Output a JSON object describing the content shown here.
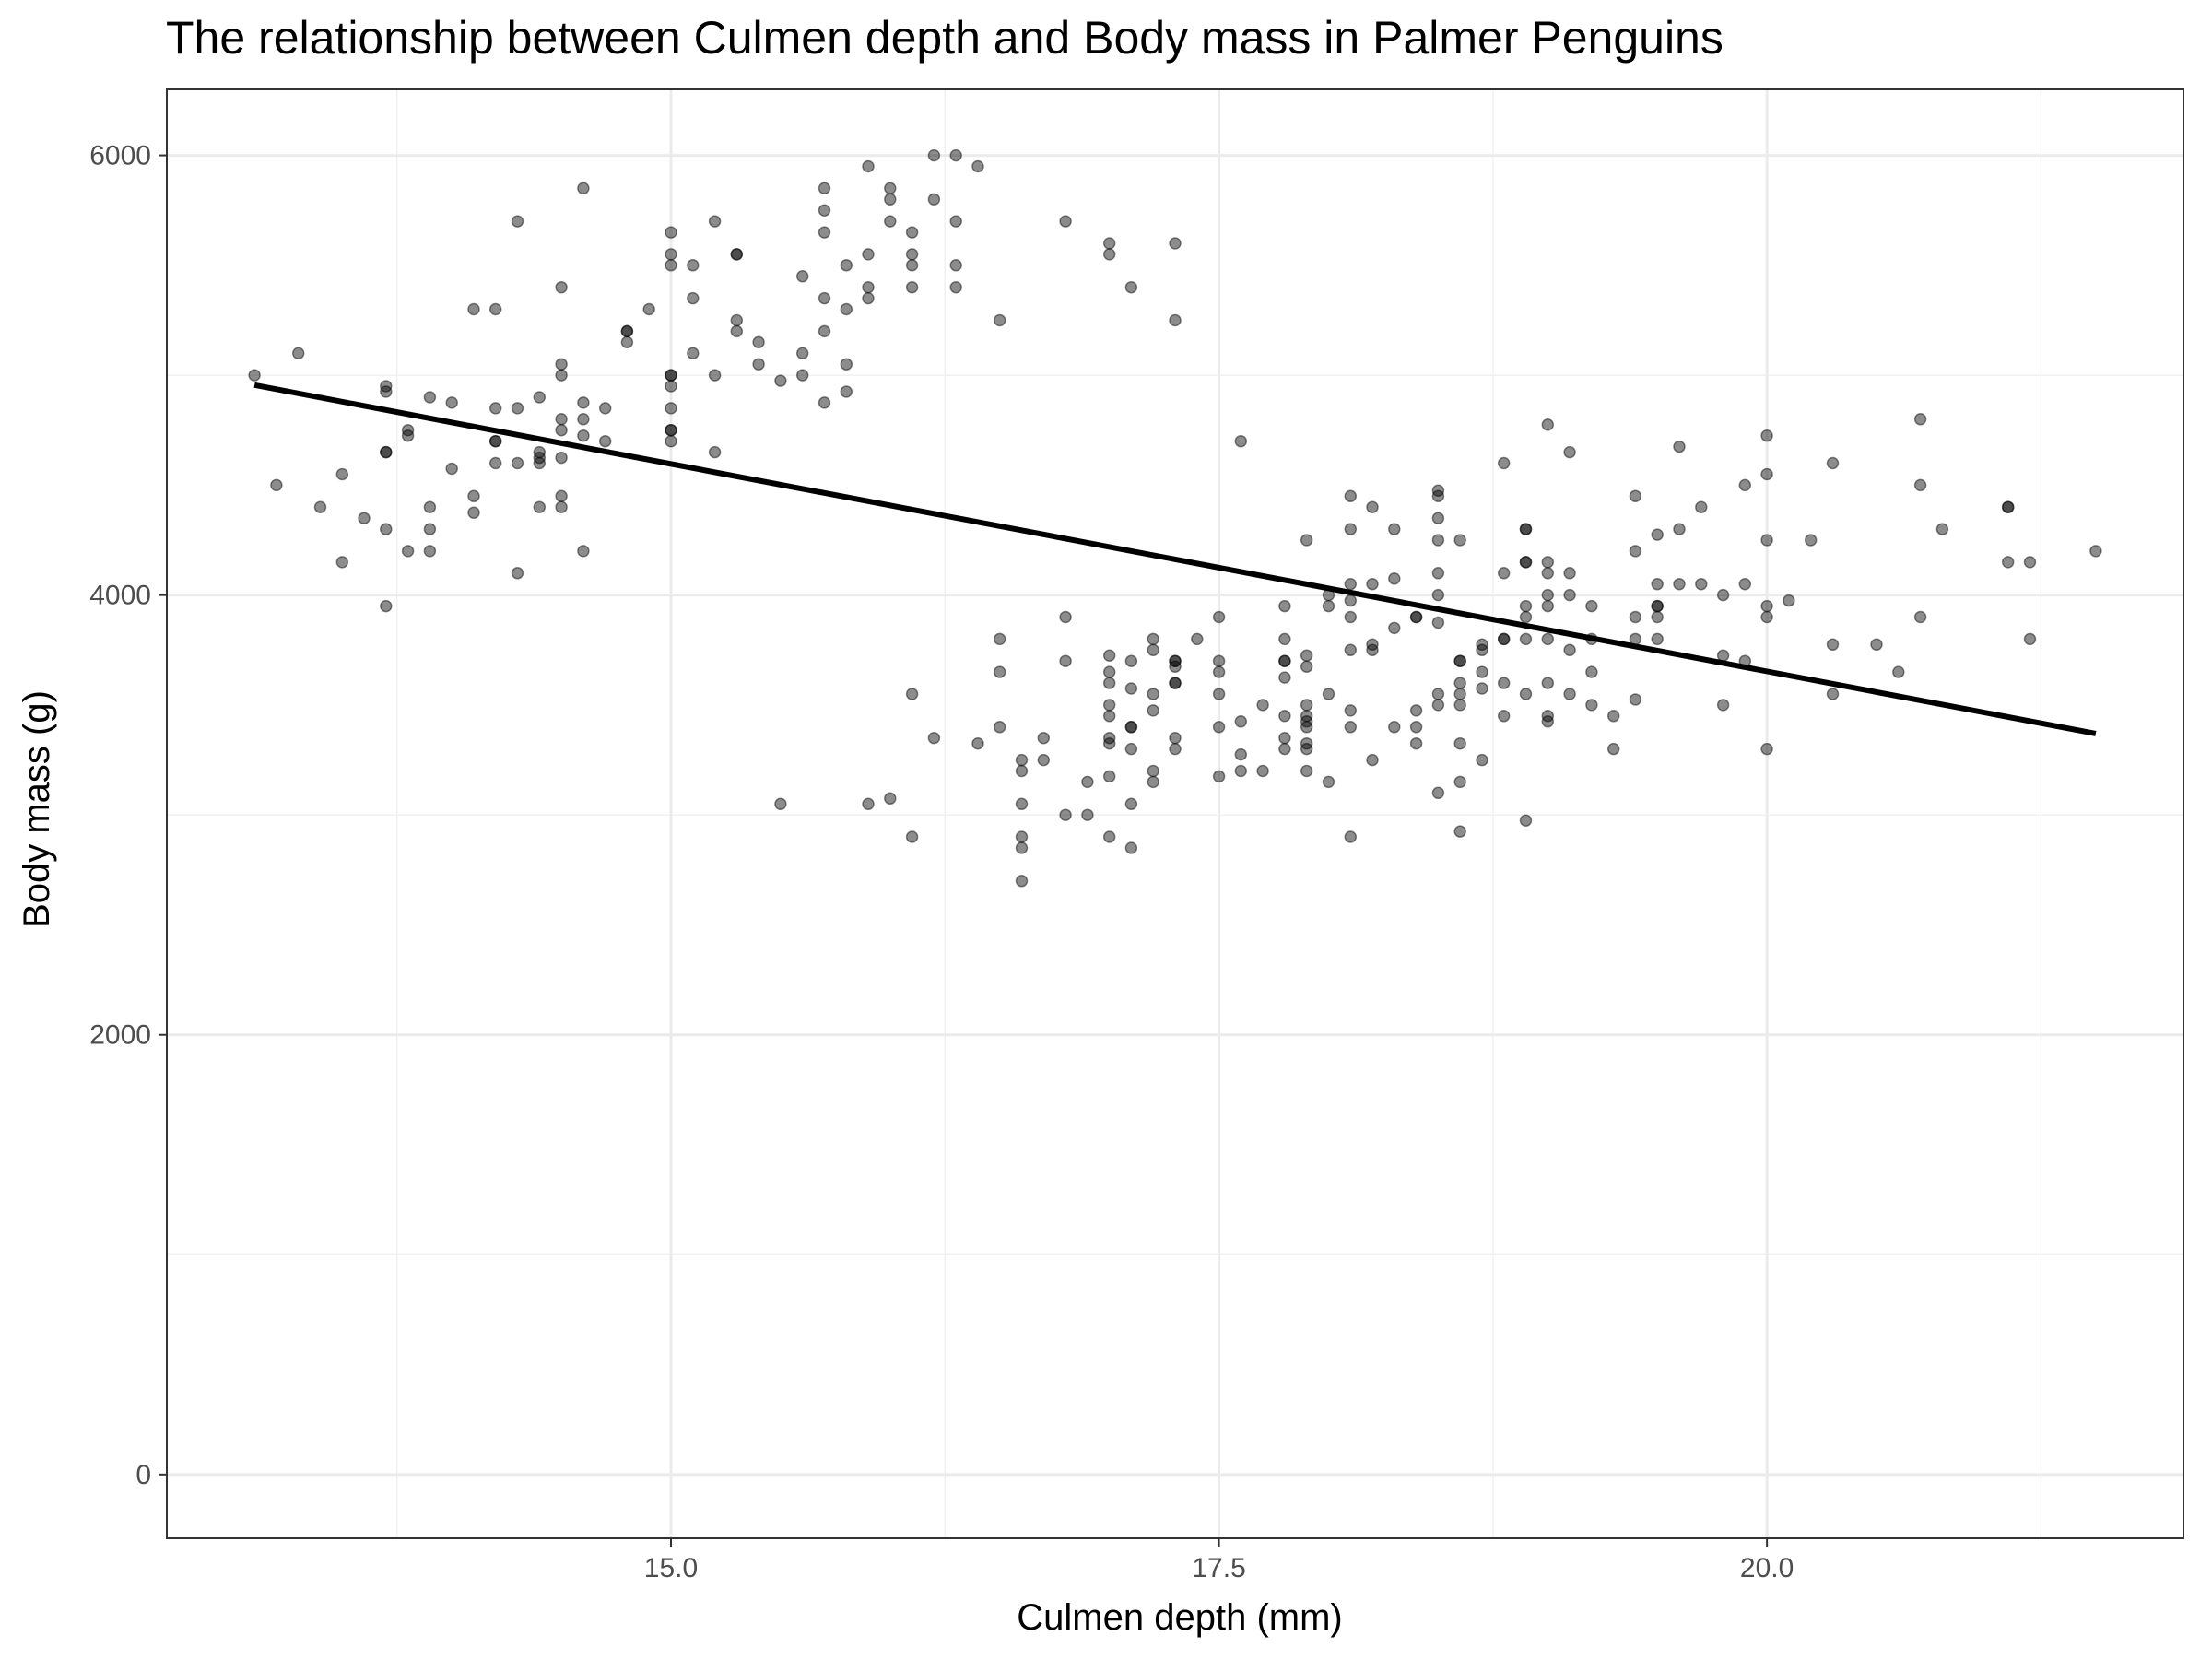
{
  "chart_data": {
    "type": "scatter",
    "title": "The relationship between Culmen depth and Body mass in Palmer Penguins",
    "xlabel": "Culmen depth (mm)",
    "ylabel": "Body mass (g)",
    "xlim": [
      12.7,
      21.9
    ],
    "ylim": [
      -290,
      6300
    ],
    "x_ticks": [
      15.0,
      17.5,
      20.0
    ],
    "x_tick_labels": [
      "15.0",
      "17.5",
      "20.0"
    ],
    "y_ticks": [
      0,
      2000,
      4000,
      6000
    ],
    "y_tick_labels": [
      "0",
      "2000",
      "4000",
      "6000"
    ],
    "grid": true,
    "legend": "none",
    "point_color": "#000000",
    "point_opacity": 0.45,
    "line_color": "#000000",
    "regression_line": {
      "x": [
        13.1,
        21.5
      ],
      "y": [
        4955,
        3370
      ]
    },
    "points": [
      [
        13.1,
        5000
      ],
      [
        13.2,
        4500
      ],
      [
        13.3,
        5100
      ],
      [
        13.4,
        4400
      ],
      [
        13.5,
        4550
      ],
      [
        13.5,
        4150
      ],
      [
        13.6,
        4350
      ],
      [
        13.7,
        4300
      ],
      [
        13.7,
        4650
      ],
      [
        13.7,
        4650
      ],
      [
        13.7,
        4950
      ],
      [
        13.7,
        4925
      ],
      [
        13.7,
        3950
      ],
      [
        13.8,
        4750
      ],
      [
        13.8,
        4725
      ],
      [
        13.8,
        4200
      ],
      [
        13.9,
        4900
      ],
      [
        13.9,
        4400
      ],
      [
        13.9,
        4300
      ],
      [
        13.9,
        4200
      ],
      [
        14.0,
        4875
      ],
      [
        14.0,
        4575
      ],
      [
        14.1,
        5300
      ],
      [
        14.1,
        4450
      ],
      [
        14.1,
        4375
      ],
      [
        14.2,
        5300
      ],
      [
        14.2,
        4850
      ],
      [
        14.2,
        4700
      ],
      [
        14.2,
        4700
      ],
      [
        14.2,
        4600
      ],
      [
        14.3,
        5700
      ],
      [
        14.3,
        4850
      ],
      [
        14.3,
        4600
      ],
      [
        14.3,
        4100
      ],
      [
        14.4,
        4900
      ],
      [
        14.4,
        4650
      ],
      [
        14.4,
        4625
      ],
      [
        14.4,
        4600
      ],
      [
        14.4,
        4400
      ],
      [
        14.5,
        5400
      ],
      [
        14.5,
        5050
      ],
      [
        14.5,
        5000
      ],
      [
        14.5,
        4800
      ],
      [
        14.5,
        4750
      ],
      [
        14.5,
        4625
      ],
      [
        14.5,
        4450
      ],
      [
        14.5,
        4400
      ],
      [
        14.6,
        5850
      ],
      [
        14.6,
        4875
      ],
      [
        14.6,
        4800
      ],
      [
        14.6,
        4725
      ],
      [
        14.6,
        4200
      ],
      [
        14.7,
        4850
      ],
      [
        14.7,
        4700
      ],
      [
        14.8,
        5200
      ],
      [
        14.8,
        5200
      ],
      [
        14.8,
        5150
      ],
      [
        14.9,
        5300
      ],
      [
        15.0,
        5650
      ],
      [
        15.0,
        5550
      ],
      [
        15.0,
        5500
      ],
      [
        15.0,
        5000
      ],
      [
        15.0,
        5000
      ],
      [
        15.0,
        4950
      ],
      [
        15.0,
        4850
      ],
      [
        15.0,
        4750
      ],
      [
        15.0,
        4750
      ],
      [
        15.0,
        4700
      ],
      [
        15.1,
        5500
      ],
      [
        15.1,
        5350
      ],
      [
        15.1,
        5100
      ],
      [
        15.2,
        5700
      ],
      [
        15.2,
        5000
      ],
      [
        15.2,
        4650
      ],
      [
        15.3,
        5550
      ],
      [
        15.3,
        5550
      ],
      [
        15.3,
        5250
      ],
      [
        15.3,
        5200
      ],
      [
        15.4,
        5150
      ],
      [
        15.4,
        5050
      ],
      [
        15.5,
        4975
      ],
      [
        15.5,
        3050
      ],
      [
        15.6,
        5450
      ],
      [
        15.6,
        5100
      ],
      [
        15.6,
        5000
      ],
      [
        15.7,
        5850
      ],
      [
        15.7,
        5750
      ],
      [
        15.7,
        5650
      ],
      [
        15.7,
        5350
      ],
      [
        15.7,
        5200
      ],
      [
        15.7,
        4875
      ],
      [
        15.8,
        5500
      ],
      [
        15.8,
        5300
      ],
      [
        15.8,
        5050
      ],
      [
        15.8,
        4925
      ],
      [
        15.9,
        5950
      ],
      [
        15.9,
        5550
      ],
      [
        15.9,
        5400
      ],
      [
        15.9,
        5350
      ],
      [
        15.9,
        3050
      ],
      [
        16.0,
        5850
      ],
      [
        16.0,
        5800
      ],
      [
        16.0,
        5700
      ],
      [
        16.0,
        3075
      ],
      [
        16.1,
        5650
      ],
      [
        16.1,
        5550
      ],
      [
        16.1,
        5500
      ],
      [
        16.1,
        5400
      ],
      [
        16.1,
        3550
      ],
      [
        16.1,
        2900
      ],
      [
        16.2,
        6000
      ],
      [
        16.2,
        5800
      ],
      [
        16.2,
        3350
      ],
      [
        16.3,
        6000
      ],
      [
        16.3,
        5700
      ],
      [
        16.3,
        5500
      ],
      [
        16.3,
        5400
      ],
      [
        16.4,
        5950
      ],
      [
        16.4,
        3325
      ],
      [
        16.5,
        5250
      ],
      [
        16.5,
        3800
      ],
      [
        16.5,
        3650
      ],
      [
        16.5,
        3400
      ],
      [
        16.6,
        3250
      ],
      [
        16.6,
        3200
      ],
      [
        16.6,
        3050
      ],
      [
        16.6,
        2900
      ],
      [
        16.6,
        2850
      ],
      [
        16.6,
        2700
      ],
      [
        16.7,
        3350
      ],
      [
        16.7,
        3250
      ],
      [
        16.8,
        5700
      ],
      [
        16.8,
        3900
      ],
      [
        16.8,
        3700
      ],
      [
        16.8,
        3000
      ],
      [
        16.9,
        3150
      ],
      [
        16.9,
        3000
      ],
      [
        17.0,
        5600
      ],
      [
        17.0,
        5550
      ],
      [
        17.0,
        3725
      ],
      [
        17.0,
        3650
      ],
      [
        17.0,
        3600
      ],
      [
        17.0,
        3500
      ],
      [
        17.0,
        3450
      ],
      [
        17.0,
        3350
      ],
      [
        17.0,
        3325
      ],
      [
        17.0,
        3175
      ],
      [
        17.0,
        2900
      ],
      [
        17.1,
        5400
      ],
      [
        17.1,
        3700
      ],
      [
        17.1,
        3575
      ],
      [
        17.1,
        3400
      ],
      [
        17.1,
        3400
      ],
      [
        17.1,
        3300
      ],
      [
        17.1,
        3050
      ],
      [
        17.1,
        2850
      ],
      [
        17.2,
        3800
      ],
      [
        17.2,
        3750
      ],
      [
        17.2,
        3550
      ],
      [
        17.2,
        3475
      ],
      [
        17.2,
        3200
      ],
      [
        17.2,
        3150
      ],
      [
        17.3,
        5600
      ],
      [
        17.3,
        5250
      ],
      [
        17.3,
        3700
      ],
      [
        17.3,
        3700
      ],
      [
        17.3,
        3675
      ],
      [
        17.3,
        3600
      ],
      [
        17.3,
        3600
      ],
      [
        17.3,
        3350
      ],
      [
        17.3,
        3300
      ],
      [
        17.4,
        3800
      ],
      [
        17.5,
        3900
      ],
      [
        17.5,
        3700
      ],
      [
        17.5,
        3650
      ],
      [
        17.5,
        3550
      ],
      [
        17.5,
        3400
      ],
      [
        17.5,
        3175
      ],
      [
        17.6,
        4700
      ],
      [
        17.6,
        3425
      ],
      [
        17.6,
        3275
      ],
      [
        17.6,
        3200
      ],
      [
        17.7,
        3500
      ],
      [
        17.7,
        3200
      ],
      [
        17.8,
        3950
      ],
      [
        17.8,
        3800
      ],
      [
        17.8,
        3700
      ],
      [
        17.8,
        3700
      ],
      [
        17.8,
        3625
      ],
      [
        17.8,
        3450
      ],
      [
        17.8,
        3350
      ],
      [
        17.8,
        3300
      ],
      [
        17.9,
        4250
      ],
      [
        17.9,
        3725
      ],
      [
        17.9,
        3675
      ],
      [
        17.9,
        3500
      ],
      [
        17.9,
        3450
      ],
      [
        17.9,
        3425
      ],
      [
        17.9,
        3400
      ],
      [
        17.9,
        3325
      ],
      [
        17.9,
        3300
      ],
      [
        17.9,
        3200
      ],
      [
        18.0,
        4000
      ],
      [
        18.0,
        3950
      ],
      [
        18.0,
        3550
      ],
      [
        18.0,
        3150
      ],
      [
        18.1,
        4450
      ],
      [
        18.1,
        4300
      ],
      [
        18.1,
        4050
      ],
      [
        18.1,
        3975
      ],
      [
        18.1,
        3900
      ],
      [
        18.1,
        3750
      ],
      [
        18.1,
        3475
      ],
      [
        18.1,
        3400
      ],
      [
        18.1,
        2900
      ],
      [
        18.2,
        4400
      ],
      [
        18.2,
        4050
      ],
      [
        18.2,
        3775
      ],
      [
        18.2,
        3750
      ],
      [
        18.2,
        3250
      ],
      [
        18.3,
        4300
      ],
      [
        18.3,
        4075
      ],
      [
        18.3,
        3850
      ],
      [
        18.3,
        3400
      ],
      [
        18.4,
        3900
      ],
      [
        18.4,
        3900
      ],
      [
        18.4,
        3475
      ],
      [
        18.4,
        3400
      ],
      [
        18.4,
        3325
      ],
      [
        18.5,
        4475
      ],
      [
        18.5,
        4450
      ],
      [
        18.5,
        4350
      ],
      [
        18.5,
        4250
      ],
      [
        18.5,
        4100
      ],
      [
        18.5,
        4000
      ],
      [
        18.5,
        3875
      ],
      [
        18.5,
        3550
      ],
      [
        18.5,
        3500
      ],
      [
        18.5,
        3100
      ],
      [
        18.6,
        4250
      ],
      [
        18.6,
        3700
      ],
      [
        18.6,
        3700
      ],
      [
        18.6,
        3600
      ],
      [
        18.6,
        3550
      ],
      [
        18.6,
        3500
      ],
      [
        18.6,
        3325
      ],
      [
        18.6,
        3150
      ],
      [
        18.6,
        2925
      ],
      [
        18.7,
        3775
      ],
      [
        18.7,
        3750
      ],
      [
        18.7,
        3650
      ],
      [
        18.7,
        3575
      ],
      [
        18.7,
        3250
      ],
      [
        18.8,
        4600
      ],
      [
        18.8,
        4100
      ],
      [
        18.8,
        3800
      ],
      [
        18.8,
        3800
      ],
      [
        18.8,
        3600
      ],
      [
        18.8,
        3450
      ],
      [
        18.9,
        4300
      ],
      [
        18.9,
        4300
      ],
      [
        18.9,
        4150
      ],
      [
        18.9,
        4150
      ],
      [
        18.9,
        3950
      ],
      [
        18.9,
        3900
      ],
      [
        18.9,
        3800
      ],
      [
        18.9,
        3550
      ],
      [
        18.9,
        2975
      ],
      [
        19.0,
        4775
      ],
      [
        19.0,
        4150
      ],
      [
        19.0,
        4100
      ],
      [
        19.0,
        4000
      ],
      [
        19.0,
        3950
      ],
      [
        19.0,
        3800
      ],
      [
        19.0,
        3600
      ],
      [
        19.0,
        3450
      ],
      [
        19.0,
        3425
      ],
      [
        19.1,
        4650
      ],
      [
        19.1,
        4100
      ],
      [
        19.1,
        4000
      ],
      [
        19.1,
        3750
      ],
      [
        19.1,
        3550
      ],
      [
        19.2,
        3950
      ],
      [
        19.2,
        3800
      ],
      [
        19.2,
        3650
      ],
      [
        19.2,
        3500
      ],
      [
        19.3,
        3450
      ],
      [
        19.3,
        3300
      ],
      [
        19.4,
        4450
      ],
      [
        19.4,
        4200
      ],
      [
        19.4,
        3900
      ],
      [
        19.4,
        3800
      ],
      [
        19.4,
        3525
      ],
      [
        19.5,
        4275
      ],
      [
        19.5,
        4050
      ],
      [
        19.5,
        3950
      ],
      [
        19.5,
        3950
      ],
      [
        19.5,
        3900
      ],
      [
        19.5,
        3800
      ],
      [
        19.6,
        4675
      ],
      [
        19.6,
        4300
      ],
      [
        19.6,
        4050
      ],
      [
        19.7,
        4400
      ],
      [
        19.7,
        4050
      ],
      [
        19.8,
        4000
      ],
      [
        19.8,
        3725
      ],
      [
        19.8,
        3500
      ],
      [
        19.9,
        4500
      ],
      [
        19.9,
        4050
      ],
      [
        19.9,
        3700
      ],
      [
        20.0,
        4725
      ],
      [
        20.0,
        4550
      ],
      [
        20.0,
        4250
      ],
      [
        20.0,
        3950
      ],
      [
        20.0,
        3900
      ],
      [
        20.0,
        3300
      ],
      [
        20.1,
        3975
      ],
      [
        20.2,
        4250
      ],
      [
        20.3,
        4600
      ],
      [
        20.3,
        3775
      ],
      [
        20.3,
        3550
      ],
      [
        20.5,
        3775
      ],
      [
        20.6,
        3650
      ],
      [
        20.7,
        4800
      ],
      [
        20.7,
        4500
      ],
      [
        20.7,
        3900
      ],
      [
        20.8,
        4300
      ],
      [
        21.1,
        4400
      ],
      [
        21.1,
        4400
      ],
      [
        21.1,
        4150
      ],
      [
        21.2,
        4150
      ],
      [
        21.2,
        3800
      ],
      [
        21.5,
        4200
      ]
    ]
  }
}
